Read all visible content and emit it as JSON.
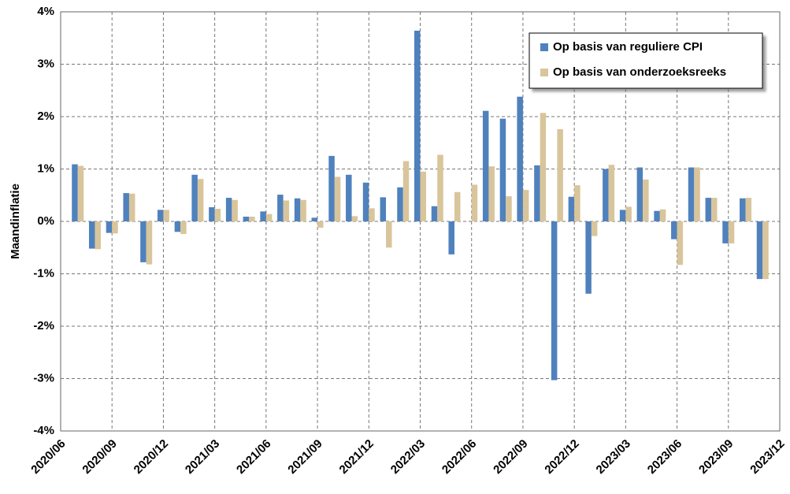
{
  "chart_data": {
    "type": "bar",
    "y_label": "Maandinflatie",
    "categories": [
      "2020/06",
      null,
      null,
      "2020/09",
      null,
      null,
      "2020/12",
      null,
      null,
      "2021/03",
      null,
      null,
      "2021/06",
      null,
      null,
      "2021/09",
      null,
      null,
      "2021/12",
      null,
      null,
      "2022/03",
      null,
      null,
      "2022/06",
      null,
      null,
      "2022/09",
      null,
      null,
      "2022/12",
      null,
      null,
      "2023/03",
      null,
      null,
      "2023/06",
      null,
      null,
      "2023/09",
      null,
      null,
      "2023/12"
    ],
    "series": [
      {
        "name": "Op basis van reguliere CPI",
        "color": "#4f81bd",
        "values": [
          null,
          1.09,
          -0.52,
          -0.22,
          0.54,
          -0.78,
          0.22,
          -0.2,
          0.89,
          0.27,
          0.45,
          0.09,
          0.19,
          0.51,
          0.44,
          0.07,
          1.25,
          0.89,
          0.74,
          0.46,
          0.65,
          3.64,
          0.29,
          -0.63,
          0,
          2.11,
          1.96,
          2.38,
          1.07,
          -3.03,
          0.47,
          -1.38,
          1.0,
          0.22,
          1.03,
          0.2,
          -0.34,
          1.03,
          0.45,
          -0.42,
          0.44,
          -1.1,
          null
        ]
      },
      {
        "name": "Op basis van onderzoeksreeks",
        "color": "#d9c59b",
        "values": [
          null,
          1.06,
          -0.53,
          -0.23,
          0.53,
          -0.82,
          0.22,
          -0.24,
          0.81,
          0.24,
          0.41,
          0.09,
          0.14,
          0.4,
          0.41,
          -0.12,
          0.85,
          0.1,
          0.25,
          -0.5,
          1.15,
          0.95,
          1.27,
          0.56,
          0.7,
          1.05,
          0.48,
          0.6,
          2.07,
          1.76,
          0.69,
          -0.28,
          1.08,
          0.28,
          0.8,
          0.23,
          -0.83,
          1.03,
          0.45,
          -0.42,
          0.45,
          -1.1,
          null
        ]
      }
    ],
    "ylim": [
      -4,
      4
    ],
    "yticks": [
      {
        "value": -4,
        "label": "-4%"
      },
      {
        "value": -3,
        "label": "-3%"
      },
      {
        "value": -2,
        "label": "-2%"
      },
      {
        "value": -1,
        "label": "-1%"
      },
      {
        "value": 0,
        "label": "0%"
      },
      {
        "value": 1,
        "label": "1%"
      },
      {
        "value": 2,
        "label": "2%"
      },
      {
        "value": 3,
        "label": "3%"
      },
      {
        "value": 4,
        "label": "4%"
      }
    ],
    "grid": true,
    "legend": "top-right"
  }
}
